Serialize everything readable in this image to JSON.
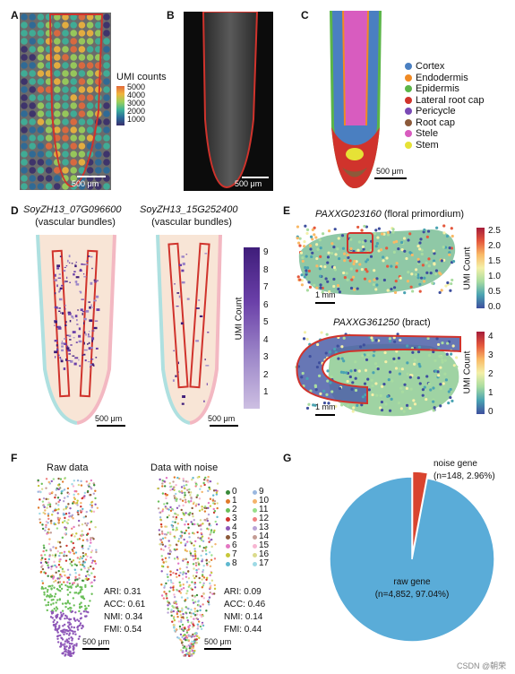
{
  "panels": {
    "A": {
      "label": "A",
      "colorbar_title": "UMI counts",
      "ticks": [
        "5000",
        "4000",
        "3000",
        "2000",
        "1000"
      ],
      "scalebar": "500 μm"
    },
    "B": {
      "label": "B",
      "scalebar": "500 μm"
    },
    "C": {
      "label": "C",
      "scalebar": "500 μm",
      "legend": [
        {
          "name": "Cortex",
          "color": "#4a7fc1"
        },
        {
          "name": "Endodermis",
          "color": "#f08a24"
        },
        {
          "name": "Epidermis",
          "color": "#5bb548"
        },
        {
          "name": "Lateral root cap",
          "color": "#d0332c"
        },
        {
          "name": "Pericycle",
          "color": "#7a4ab5"
        },
        {
          "name": "Root cap",
          "color": "#8c5a3a"
        },
        {
          "name": "Stele",
          "color": "#d85cbf"
        },
        {
          "name": "Stem",
          "color": "#e6e236"
        }
      ]
    },
    "D": {
      "label": "D",
      "gene1": "SoyZH13_07G096600",
      "gene1_note": "(vascular bundles)",
      "gene2": "SoyZH13_15G252400",
      "gene2_note": "(vascular bundles)",
      "colorbar_title": "UMI Count",
      "ticks": [
        "9",
        "8",
        "7",
        "6",
        "5",
        "4",
        "3",
        "2",
        "1"
      ],
      "scalebar1": "500 μm",
      "scalebar2": "500 μm"
    },
    "E": {
      "label": "E",
      "gene1": "PAXXG023160",
      "gene1_note": " (floral primordium)",
      "gene2": "PAXXG361250",
      "gene2_note": " (bract)",
      "colorbar_title": "UMI Count",
      "ticks1": [
        "2.5",
        "2.0",
        "1.5",
        "1.0",
        "0.5",
        "0.0"
      ],
      "ticks2": [
        "4",
        "3",
        "2",
        "1",
        "0"
      ],
      "scalebar1": "1 mm",
      "scalebar2": "1 mm"
    },
    "F": {
      "label": "F",
      "title1": "Raw data",
      "title2": "Data with noise",
      "clusters": [
        {
          "id": "0",
          "color": "#3a8a3a"
        },
        {
          "id": "1",
          "color": "#e07a2a"
        },
        {
          "id": "2",
          "color": "#6bbf59"
        },
        {
          "id": "3",
          "color": "#d0332c"
        },
        {
          "id": "4",
          "color": "#8e57b8"
        },
        {
          "id": "5",
          "color": "#8c5a3a"
        },
        {
          "id": "6",
          "color": "#e377c2"
        },
        {
          "id": "7",
          "color": "#c7c73a"
        },
        {
          "id": "8",
          "color": "#5fb8cf"
        },
        {
          "id": "9",
          "color": "#9ab8e0"
        },
        {
          "id": "10",
          "color": "#f4b36b"
        },
        {
          "id": "11",
          "color": "#98df8a"
        },
        {
          "id": "12",
          "color": "#f08080"
        },
        {
          "id": "13",
          "color": "#b9a3d6"
        },
        {
          "id": "14",
          "color": "#c49c94"
        },
        {
          "id": "15",
          "color": "#f7b6d2"
        },
        {
          "id": "16",
          "color": "#dbdb8d"
        },
        {
          "id": "17",
          "color": "#9edae5"
        }
      ],
      "metrics1": [
        "ARI: 0.31",
        "ACC: 0.61",
        "NMI: 0.34",
        "FMI: 0.54"
      ],
      "metrics2": [
        "ARI: 0.09",
        "ACC: 0.46",
        "NMI: 0.14",
        "FMI: 0.44"
      ],
      "scalebar1": "500 μm",
      "scalebar2": "500 μm"
    },
    "G": {
      "label": "G",
      "chart_data": {
        "type": "pie",
        "slices": [
          {
            "name": "raw gene",
            "count": 4852,
            "percent": 97.04,
            "color": "#5aacd8"
          },
          {
            "name": "noise gene",
            "count": 148,
            "percent": 2.96,
            "color": "#d9442f"
          }
        ]
      },
      "raw_label1": "raw gene",
      "raw_label2": "(n=4,852, 97.04%)",
      "noise_label1": "noise gene",
      "noise_label2": "(n=148, 2.96%)"
    }
  },
  "watermark": "CSDN @朝荣"
}
